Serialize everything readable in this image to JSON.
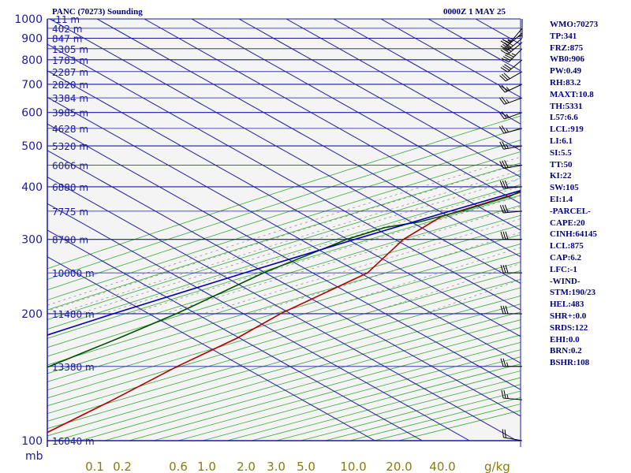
{
  "header": {
    "station": "PANC (70273) Sounding",
    "time": "0000Z  1 MAY 25"
  },
  "stats": [
    "WMO:70273",
    "TP:341",
    "FRZ:875",
    "WB0:906",
    "PW:0.49",
    "RH:83.2",
    "MAXT:10.8",
    "TH:5331",
    "L57:6.6",
    "LCL:919",
    "LI:6.1",
    "SI:5.5",
    "TT:50",
    "KI:22",
    "SW:105",
    "EI:1.4",
    "-PARCEL-",
    "CAPE:20",
    "CINH:64145",
    "LCL:875",
    "CAP:6.2",
    "LFC:-1",
    "-WIND-",
    "STM:190/23",
    "HEL:483",
    "SHR+:0.0",
    "SRDS:122",
    "EHI:0.0",
    "BRN:0.2",
    "BSHR:108"
  ],
  "chart_data": {
    "type": "line",
    "chart_kind": "skew-T log-P sounding",
    "title": "PANC (70273) Sounding",
    "y_scale": "log",
    "y_axis": "pressure (mb)",
    "x_axis": "temperature",
    "ylim": [
      1000,
      100
    ],
    "xlim": [
      -50,
      0
    ],
    "pressure_ticks": [
      100,
      200,
      300,
      400,
      500,
      600,
      700,
      800,
      900,
      1000
    ],
    "temperature_ticks": [
      "-50",
      "-40",
      "-30",
      "-20",
      "-10",
      "0",
      "10",
      "20",
      "30",
      "40"
    ],
    "pressure_unit_label": "mb",
    "mixing_ratio_unit_label": "g/kg",
    "mixing_ratio_ticks": [
      "0.1",
      "0.2",
      "0.6",
      "1.0",
      "2.0",
      "3.0",
      "5.0",
      "10.0",
      "20.0",
      "40.0"
    ],
    "height_labels": [
      {
        "p": 100,
        "label": "16040 m"
      },
      {
        "p": 150,
        "label": "13380 m"
      },
      {
        "p": 200,
        "label": "11480 m"
      },
      {
        "p": 250,
        "label": "10000 m"
      },
      {
        "p": 300,
        "label": "8790 m"
      },
      {
        "p": 350,
        "label": "7775 m"
      },
      {
        "p": 400,
        "label": "6880 m"
      },
      {
        "p": 450,
        "label": "6066 m"
      },
      {
        "p": 500,
        "label": "5320 m"
      },
      {
        "p": 550,
        "label": "4628 m"
      },
      {
        "p": 600,
        "label": "3985 m"
      },
      {
        "p": 650,
        "label": "3384 m"
      },
      {
        "p": 700,
        "label": "2820 m"
      },
      {
        "p": 750,
        "label": "2287 m"
      },
      {
        "p": 800,
        "label": "1783 m"
      },
      {
        "p": 850,
        "label": "1305 m"
      },
      {
        "p": 900,
        "label": "847 m"
      },
      {
        "p": 950,
        "label": "402 m"
      },
      {
        "p": 1000,
        "label": "-11 m"
      }
    ],
    "series": [
      {
        "role": "temperature",
        "color": "#b00000",
        "points": [
          [
            1000,
            5.6
          ],
          [
            975,
            4.2
          ],
          [
            950,
            3.4
          ],
          [
            925,
            3.3
          ],
          [
            900,
            1.5
          ],
          [
            880,
            0.6
          ],
          [
            850,
            -1.2
          ],
          [
            800,
            -4.5
          ],
          [
            750,
            -7.6
          ],
          [
            700,
            -11.0
          ],
          [
            650,
            -14.9
          ],
          [
            600,
            -19.3
          ],
          [
            550,
            -24.3
          ],
          [
            500,
            -29.5
          ],
          [
            450,
            -35.2
          ],
          [
            400,
            -42.2
          ],
          [
            350,
            -49.9
          ],
          [
            340,
            -51.6
          ],
          [
            300,
            -51.0
          ],
          [
            250,
            -46.0
          ],
          [
            200,
            -49.0
          ],
          [
            175,
            -49.0
          ],
          [
            150,
            -51.0
          ],
          [
            125,
            -52.0
          ],
          [
            100,
            -54.0
          ]
        ]
      },
      {
        "role": "dewpoint",
        "color": "#005000",
        "points": [
          [
            1000,
            -2.0
          ],
          [
            970,
            -2.2
          ],
          [
            940,
            -3.1
          ],
          [
            925,
            -2.4
          ],
          [
            900,
            -3.2
          ],
          [
            870,
            -3.8
          ],
          [
            850,
            -4.1
          ],
          [
            800,
            -7.1
          ],
          [
            750,
            -10.3
          ],
          [
            700,
            -14.0
          ],
          [
            650,
            -17.8
          ],
          [
            600,
            -21.4
          ],
          [
            560,
            -25.3
          ],
          [
            520,
            -28.5
          ],
          [
            500,
            -31.8
          ],
          [
            470,
            -37.0
          ],
          [
            450,
            -40.8
          ],
          [
            420,
            -44.3
          ],
          [
            400,
            -44.2
          ],
          [
            380,
            -44.7
          ],
          [
            350,
            -49.5
          ],
          [
            330,
            -54.3
          ],
          [
            320,
            -59.4
          ],
          [
            300,
            -63.0
          ],
          [
            250,
            -68.0
          ],
          [
            200,
            -71.0
          ],
          [
            175,
            -74.0
          ],
          [
            150,
            -78.0
          ],
          [
            125,
            -84.0
          ],
          [
            100,
            -88.0
          ]
        ]
      },
      {
        "role": "parcel",
        "color": "#0000b0",
        "points": [
          [
            1000,
            10.8
          ],
          [
            950,
            6.4
          ],
          [
            920,
            3.3
          ],
          [
            900,
            2.3
          ],
          [
            875,
            1.0
          ],
          [
            850,
            -0.3
          ],
          [
            800,
            -3.3
          ],
          [
            750,
            -6.5
          ],
          [
            700,
            -10.0
          ],
          [
            650,
            -14.0
          ],
          [
            600,
            -18.5
          ],
          [
            550,
            -23.6
          ],
          [
            500,
            -29.3
          ],
          [
            450,
            -35.9
          ],
          [
            400,
            -43.3
          ],
          [
            350,
            -51.8
          ],
          [
            300,
            -61.3
          ],
          [
            250,
            -72.0
          ],
          [
            200,
            -84.3
          ],
          [
            150,
            -99.0
          ],
          [
            110,
            -113.0
          ]
        ]
      }
    ],
    "wind_barbs": [
      {
        "p": 1000,
        "dir": 180,
        "spd": 5
      },
      {
        "p": 950,
        "dir": 220,
        "spd": 15
      },
      {
        "p": 925,
        "dir": 230,
        "spd": 25
      },
      {
        "p": 900,
        "dir": 230,
        "spd": 35
      },
      {
        "p": 880,
        "dir": 230,
        "spd": 40
      },
      {
        "p": 850,
        "dir": 225,
        "spd": 45
      },
      {
        "p": 800,
        "dir": 230,
        "spd": 30
      },
      {
        "p": 750,
        "dir": 240,
        "spd": 30
      },
      {
        "p": 700,
        "dir": 245,
        "spd": 25
      },
      {
        "p": 650,
        "dir": 250,
        "spd": 25
      },
      {
        "p": 600,
        "dir": 250,
        "spd": 25
      },
      {
        "p": 550,
        "dir": 255,
        "spd": 25
      },
      {
        "p": 500,
        "dir": 260,
        "spd": 25
      },
      {
        "p": 450,
        "dir": 260,
        "spd": 30
      },
      {
        "p": 400,
        "dir": 265,
        "spd": 30
      },
      {
        "p": 350,
        "dir": 265,
        "spd": 30
      },
      {
        "p": 300,
        "dir": 270,
        "spd": 30
      },
      {
        "p": 250,
        "dir": 270,
        "spd": 30
      },
      {
        "p": 200,
        "dir": 270,
        "spd": 30
      },
      {
        "p": 150,
        "dir": 270,
        "spd": 25
      },
      {
        "p": 125,
        "dir": 275,
        "spd": 25
      },
      {
        "p": 100,
        "dir": 280,
        "spd": 20
      }
    ]
  }
}
